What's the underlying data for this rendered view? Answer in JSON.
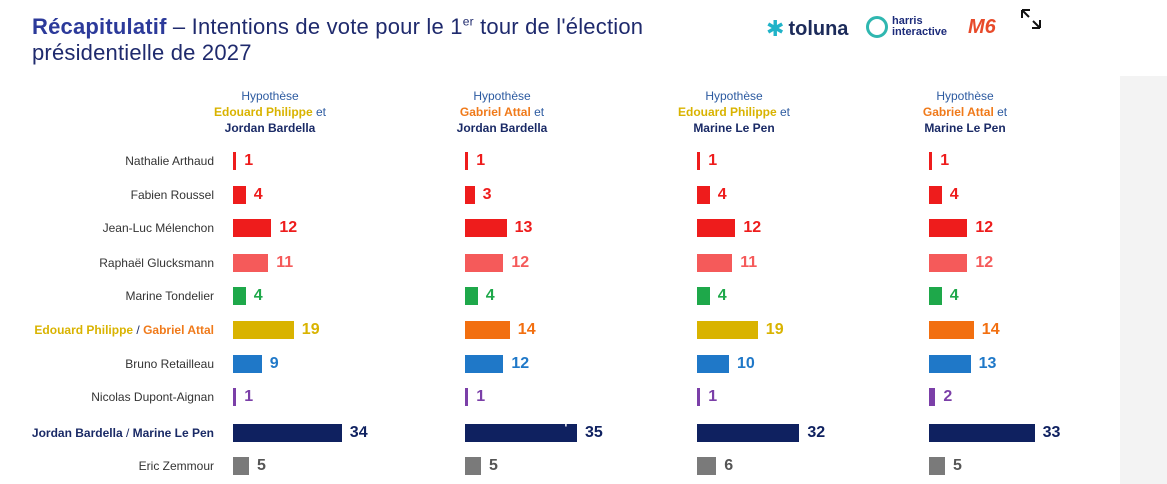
{
  "title": {
    "bold": "Récapitulatif",
    "rest_before_sup": " – Intentions de vote pour le 1",
    "sup": "er",
    "rest_after_sup": " tour de l'élection",
    "line2": "présidentielle de 2027"
  },
  "logos": {
    "toluna": "toluna",
    "harris_line1": "harris",
    "harris_line2": "interactive",
    "m6": "M6"
  },
  "colors": {
    "red": "#ee1c1c",
    "light_red": "#f55a5a",
    "green": "#1ea84a",
    "yellow": "#d9b300",
    "orange": "#f26f10",
    "blue": "#1f78c8",
    "purple": "#7b3fa8",
    "navy": "#0f2160",
    "grey": "#7a7a7a"
  },
  "chart_data": {
    "type": "bar",
    "orientation": "horizontal",
    "candidates": [
      {
        "label": "Nathalie Arthaud",
        "color": "red"
      },
      {
        "label": "Fabien Roussel",
        "color": "red"
      },
      {
        "label": "Jean-Luc Mélenchon",
        "color": "red"
      },
      {
        "label": "Raphaël Glucksmann",
        "color": "light_red"
      },
      {
        "label": "Marine Tondelier",
        "color": "green"
      },
      {
        "label_parts": [
          "Edouard Philippe",
          " / ",
          "Gabriel Attal"
        ],
        "color": "center"
      },
      {
        "label": "Bruno Retailleau",
        "color": "blue"
      },
      {
        "label": "Nicolas Dupont-Aignan",
        "color": "purple"
      },
      {
        "label_parts": [
          "Jordan Bardella",
          " / ",
          "Marine Le Pen"
        ],
        "color": "navy"
      },
      {
        "label": "Eric Zemmour",
        "color": "grey"
      }
    ],
    "hypotheses": [
      {
        "hyp": "Hypothèse",
        "name1": "Edouard Philippe",
        "name1_color": "yellow",
        "et": " et",
        "name2": "Jordan Bardella",
        "center_color": "yellow",
        "values": [
          1,
          4,
          12,
          11,
          4,
          19,
          9,
          1,
          34,
          5
        ]
      },
      {
        "hyp": "Hypothèse",
        "name1": "Gabriel Attal",
        "name1_color": "orange",
        "et": " et",
        "name2": "Jordan Bardella",
        "center_color": "orange",
        "values": [
          1,
          3,
          13,
          12,
          4,
          14,
          12,
          1,
          35,
          5
        ]
      },
      {
        "hyp": "Hypothèse",
        "name1": "Edouard Philippe",
        "name1_color": "yellow",
        "et": " et",
        "name2": "Marine Le Pen",
        "center_color": "yellow",
        "values": [
          1,
          4,
          12,
          11,
          4,
          19,
          10,
          1,
          32,
          6
        ]
      },
      {
        "hyp": "Hypothèse",
        "name1": "Gabriel Attal",
        "name1_color": "orange",
        "et": " et",
        "name2": "Marine Le Pen",
        "center_color": "orange",
        "values": [
          1,
          4,
          12,
          12,
          4,
          14,
          13,
          2,
          33,
          5
        ]
      }
    ]
  },
  "overlay": {
    "text": "Intentions de vote pour le 1er tour de l'élection présidentielle"
  }
}
